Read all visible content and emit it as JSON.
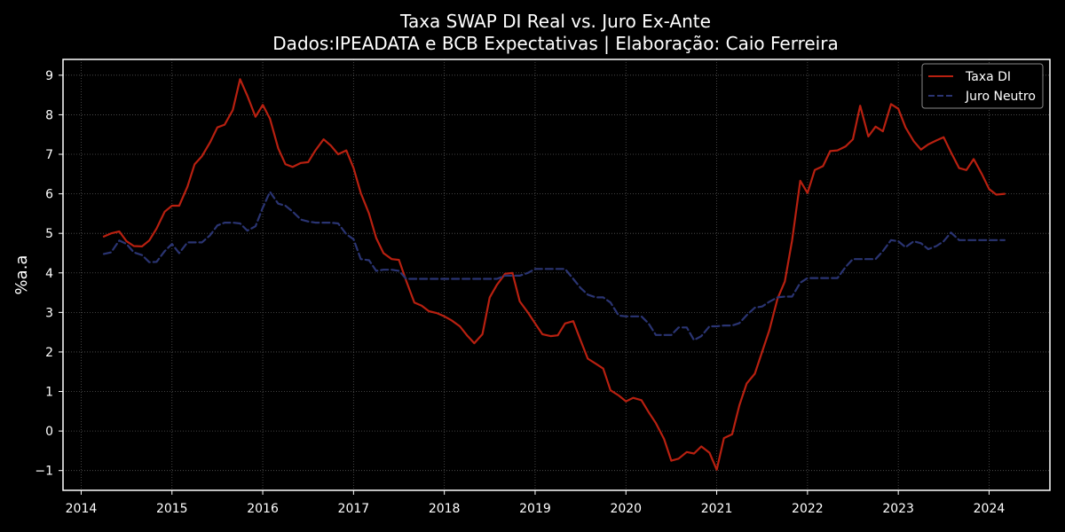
{
  "chart_data": {
    "type": "line",
    "title": "Taxa SWAP DI Real vs. Juro Ex-Ante",
    "subtitle": "Dados:IPEADATA e BCB Expectativas | Elaboração: Caio Ferreira",
    "xlabel": "",
    "ylabel": "%a.a",
    "xlim": [
      2013.8,
      2024.67
    ],
    "ylim": [
      -1.5,
      9.4
    ],
    "x_ticks": [
      "2014",
      "2015",
      "2016",
      "2017",
      "2018",
      "2019",
      "2020",
      "2021",
      "2022",
      "2023",
      "2024"
    ],
    "y_ticks": [
      "−1",
      "0",
      "1",
      "2",
      "3",
      "4",
      "5",
      "6",
      "7",
      "8",
      "9"
    ],
    "grid": true,
    "legend_position": "top-right",
    "x": [
      2014.25,
      2014.33,
      2014.42,
      2014.5,
      2014.58,
      2014.67,
      2014.75,
      2014.83,
      2014.92,
      2015.0,
      2015.08,
      2015.17,
      2015.25,
      2015.33,
      2015.42,
      2015.5,
      2015.58,
      2015.67,
      2015.75,
      2015.83,
      2015.92,
      2016.0,
      2016.08,
      2016.17,
      2016.25,
      2016.33,
      2016.42,
      2016.5,
      2016.58,
      2016.67,
      2016.75,
      2016.83,
      2016.92,
      2017.0,
      2017.08,
      2017.17,
      2017.25,
      2017.33,
      2017.42,
      2017.5,
      2017.58,
      2017.67,
      2017.75,
      2017.83,
      2017.92,
      2018.0,
      2018.08,
      2018.17,
      2018.25,
      2018.33,
      2018.42,
      2018.5,
      2018.58,
      2018.67,
      2018.75,
      2018.83,
      2018.92,
      2019.0,
      2019.08,
      2019.17,
      2019.25,
      2019.33,
      2019.42,
      2019.5,
      2019.58,
      2019.67,
      2019.75,
      2019.83,
      2019.92,
      2020.0,
      2020.08,
      2020.17,
      2020.25,
      2020.33,
      2020.42,
      2020.5,
      2020.58,
      2020.67,
      2020.75,
      2020.83,
      2020.92,
      2021.0,
      2021.08,
      2021.17,
      2021.25,
      2021.33,
      2021.42,
      2021.5,
      2021.58,
      2021.67,
      2021.75,
      2021.83,
      2021.92,
      2022.0,
      2022.08,
      2022.17,
      2022.25,
      2022.33,
      2022.42,
      2022.5,
      2022.58,
      2022.67,
      2022.75,
      2022.83,
      2022.92,
      2023.0,
      2023.08,
      2023.17,
      2023.25,
      2023.33,
      2023.42,
      2023.5,
      2023.58,
      2023.67,
      2023.75,
      2023.83,
      2023.92,
      2024.0,
      2024.08,
      2024.17
    ],
    "series": [
      {
        "name": "Taxa DI",
        "color": "#b82010",
        "dash": "solid",
        "values": [
          4.92,
          5.0,
          5.05,
          4.8,
          4.68,
          4.67,
          4.82,
          5.12,
          5.55,
          5.7,
          5.7,
          6.18,
          6.75,
          6.95,
          7.3,
          7.68,
          7.75,
          8.12,
          8.9,
          8.48,
          7.95,
          8.25,
          7.9,
          7.15,
          6.75,
          6.68,
          6.78,
          6.8,
          7.1,
          7.38,
          7.22,
          7.0,
          7.1,
          6.65,
          6.02,
          5.5,
          4.88,
          4.5,
          4.35,
          4.33,
          3.8,
          3.25,
          3.17,
          3.03,
          2.98,
          2.9,
          2.8,
          2.65,
          2.42,
          2.22,
          2.45,
          3.38,
          3.7,
          3.98,
          4.0,
          3.28,
          3.0,
          2.72,
          2.45,
          2.4,
          2.42,
          2.72,
          2.78,
          2.3,
          1.83,
          1.7,
          1.58,
          1.03,
          0.9,
          0.75,
          0.84,
          0.78,
          0.48,
          0.2,
          -0.2,
          -0.75,
          -0.7,
          -0.53,
          -0.57,
          -0.39,
          -0.55,
          -0.98,
          -0.18,
          -0.08,
          0.65,
          1.2,
          1.45,
          2.0,
          2.55,
          3.35,
          3.78,
          4.82,
          6.33,
          6.02,
          6.6,
          6.7,
          7.08,
          7.1,
          7.2,
          7.38,
          8.23,
          7.45,
          7.7,
          7.58,
          8.27,
          8.15,
          7.68,
          7.33,
          7.12,
          7.25,
          7.35,
          7.43,
          7.05,
          6.65,
          6.6,
          6.88,
          6.5,
          6.12,
          5.98,
          6.0
        ]
      },
      {
        "name": "Juro Neutro",
        "color": "#2a3472",
        "dash": "dashed",
        "values": [
          4.48,
          4.52,
          4.82,
          4.73,
          4.52,
          4.45,
          4.27,
          4.28,
          4.55,
          4.73,
          4.5,
          4.77,
          4.77,
          4.77,
          4.95,
          5.2,
          5.27,
          5.27,
          5.25,
          5.07,
          5.18,
          5.65,
          6.05,
          5.75,
          5.7,
          5.55,
          5.35,
          5.3,
          5.27,
          5.27,
          5.27,
          5.25,
          4.98,
          4.85,
          4.35,
          4.32,
          4.05,
          4.08,
          4.08,
          4.05,
          3.85,
          3.85,
          3.85,
          3.85,
          3.85,
          3.85,
          3.85,
          3.85,
          3.85,
          3.85,
          3.85,
          3.85,
          3.85,
          3.93,
          3.93,
          3.93,
          4.0,
          4.1,
          4.1,
          4.1,
          4.1,
          4.1,
          3.85,
          3.62,
          3.45,
          3.38,
          3.38,
          3.25,
          2.92,
          2.9,
          2.9,
          2.9,
          2.72,
          2.43,
          2.43,
          2.43,
          2.62,
          2.62,
          2.3,
          2.4,
          2.65,
          2.65,
          2.67,
          2.67,
          2.73,
          2.93,
          3.12,
          3.15,
          3.27,
          3.38,
          3.4,
          3.4,
          3.75,
          3.87,
          3.87,
          3.87,
          3.87,
          3.87,
          4.15,
          4.35,
          4.35,
          4.35,
          4.35,
          4.55,
          4.83,
          4.8,
          4.65,
          4.8,
          4.75,
          4.6,
          4.68,
          4.8,
          5.02,
          4.83,
          4.83,
          4.83,
          4.83,
          4.83,
          4.83,
          4.83
        ]
      }
    ]
  }
}
